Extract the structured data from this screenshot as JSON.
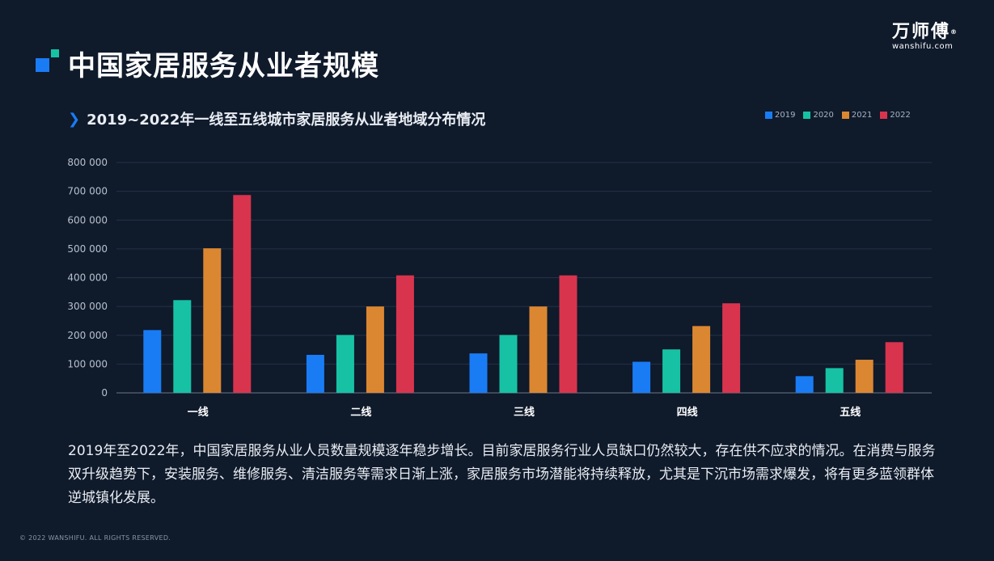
{
  "header": {
    "title": "中国家居服务从业者规模",
    "logo_cn": "万师傅",
    "logo_reg": "®",
    "logo_en": "wanshifu.com"
  },
  "subtitle": "2019~2022年一线至五线城市家居服务从业者地域分布情况",
  "chart_data": {
    "type": "bar",
    "title": "2019~2022年一线至五线城市家居服务从业者地域分布情况",
    "categories": [
      "一线",
      "二线",
      "三线",
      "四线",
      "五线"
    ],
    "series": [
      {
        "name": "2019",
        "color": "#1a7cf5",
        "values": [
          218000,
          132000,
          137000,
          108000,
          58000
        ]
      },
      {
        "name": "2020",
        "color": "#17c2a4",
        "values": [
          322000,
          201000,
          201000,
          151000,
          86000
        ]
      },
      {
        "name": "2021",
        "color": "#db8732",
        "values": [
          502000,
          300000,
          300000,
          232000,
          115000
        ]
      },
      {
        "name": "2022",
        "color": "#d9344e",
        "values": [
          687000,
          408000,
          408000,
          311000,
          176000
        ]
      }
    ],
    "y_ticks": [
      "0",
      "100 000",
      "200 000",
      "300 000",
      "400 000",
      "500 000",
      "600 000",
      "700 000",
      "800 000"
    ],
    "ylim": [
      0,
      800000
    ],
    "grid": true,
    "legend_position": "top-right",
    "xlabel": "",
    "ylabel": ""
  },
  "description": "2019年至2022年，中国家居服务从业人员数量规模逐年稳步增长。目前家居服务行业人员缺口仍然较大，存在供不应求的情况。在消费与服务双升级趋势下，安装服务、维修服务、清洁服务等需求日渐上涨，家居服务市场潜能将持续释放，尤其是下沉市场需求爆发，将有更多蓝领群体逆城镇化发展。",
  "footer": {
    "copyright": "© 2022 WANSHIFU. ALL RIGHTS RESERVED."
  }
}
